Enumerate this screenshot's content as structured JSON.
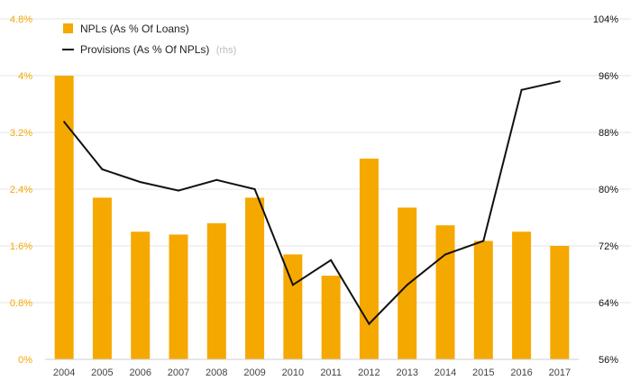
{
  "chart_data": {
    "type": "bar+line",
    "categories": [
      "2004",
      "2005",
      "2006",
      "2007",
      "2008",
      "2009",
      "2010",
      "2011",
      "2012",
      "2013",
      "2014",
      "2015",
      "2016",
      "2017"
    ],
    "series": [
      {
        "name": "NPLs (As % Of Loans)",
        "type": "bar",
        "axis": "left",
        "color": "#f5a800",
        "values": [
          4.0,
          2.28,
          1.8,
          1.76,
          1.92,
          2.28,
          1.48,
          1.18,
          2.83,
          2.14,
          1.89,
          1.67,
          1.8,
          1.6
        ]
      },
      {
        "name": "Provisions (As % Of NPLs)",
        "note": "(rhs)",
        "type": "line",
        "axis": "right",
        "color": "#111111",
        "values": [
          89.5,
          82.8,
          81.0,
          79.8,
          81.3,
          80.0,
          66.5,
          70.0,
          61.0,
          66.5,
          70.8,
          72.7,
          94.0,
          95.2
        ]
      }
    ],
    "y_left": {
      "range": [
        0,
        4.8
      ],
      "ticks": [
        0,
        0.8,
        1.6,
        2.4,
        3.2,
        4.0,
        4.8
      ],
      "tick_labels": [
        "0%",
        "0.8%",
        "1.6%",
        "2.4%",
        "3.2%",
        "4%",
        "4.8%"
      ]
    },
    "y_right": {
      "range": [
        56,
        104
      ],
      "ticks": [
        56,
        64,
        72,
        80,
        88,
        96,
        104
      ],
      "tick_labels": [
        "56%",
        "64%",
        "72%",
        "80%",
        "88%",
        "96%",
        "104%"
      ]
    },
    "legend": "top-left",
    "grid": true
  }
}
